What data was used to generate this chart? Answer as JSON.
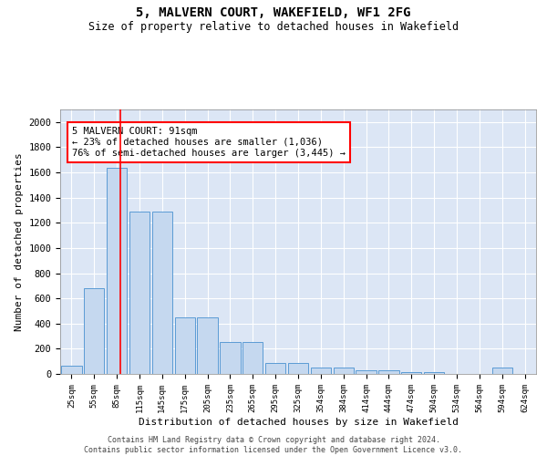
{
  "title": "5, MALVERN COURT, WAKEFIELD, WF1 2FG",
  "subtitle": "Size of property relative to detached houses in Wakefield",
  "xlabel": "Distribution of detached houses by size in Wakefield",
  "ylabel": "Number of detached properties",
  "bar_color": "#c5d8ef",
  "bar_edge_color": "#5b9bd5",
  "background_color": "#dce6f5",
  "grid_color": "#ffffff",
  "categories": [
    "25sqm",
    "55sqm",
    "85sqm",
    "115sqm",
    "145sqm",
    "175sqm",
    "205sqm",
    "235sqm",
    "265sqm",
    "295sqm",
    "325sqm",
    "354sqm",
    "384sqm",
    "414sqm",
    "444sqm",
    "474sqm",
    "504sqm",
    "534sqm",
    "564sqm",
    "594sqm",
    "624sqm"
  ],
  "values": [
    65,
    680,
    1640,
    1290,
    1290,
    450,
    450,
    250,
    250,
    90,
    90,
    50,
    50,
    30,
    30,
    15,
    15,
    0,
    0,
    50,
    0
  ],
  "ylim": [
    0,
    2100
  ],
  "yticks": [
    0,
    200,
    400,
    600,
    800,
    1000,
    1200,
    1400,
    1600,
    1800,
    2000
  ],
  "red_line_x": 2.17,
  "annotation_text": "5 MALVERN COURT: 91sqm\n← 23% of detached houses are smaller (1,036)\n76% of semi-detached houses are larger (3,445) →",
  "footer_line1": "Contains HM Land Registry data © Crown copyright and database right 2024.",
  "footer_line2": "Contains public sector information licensed under the Open Government Licence v3.0."
}
